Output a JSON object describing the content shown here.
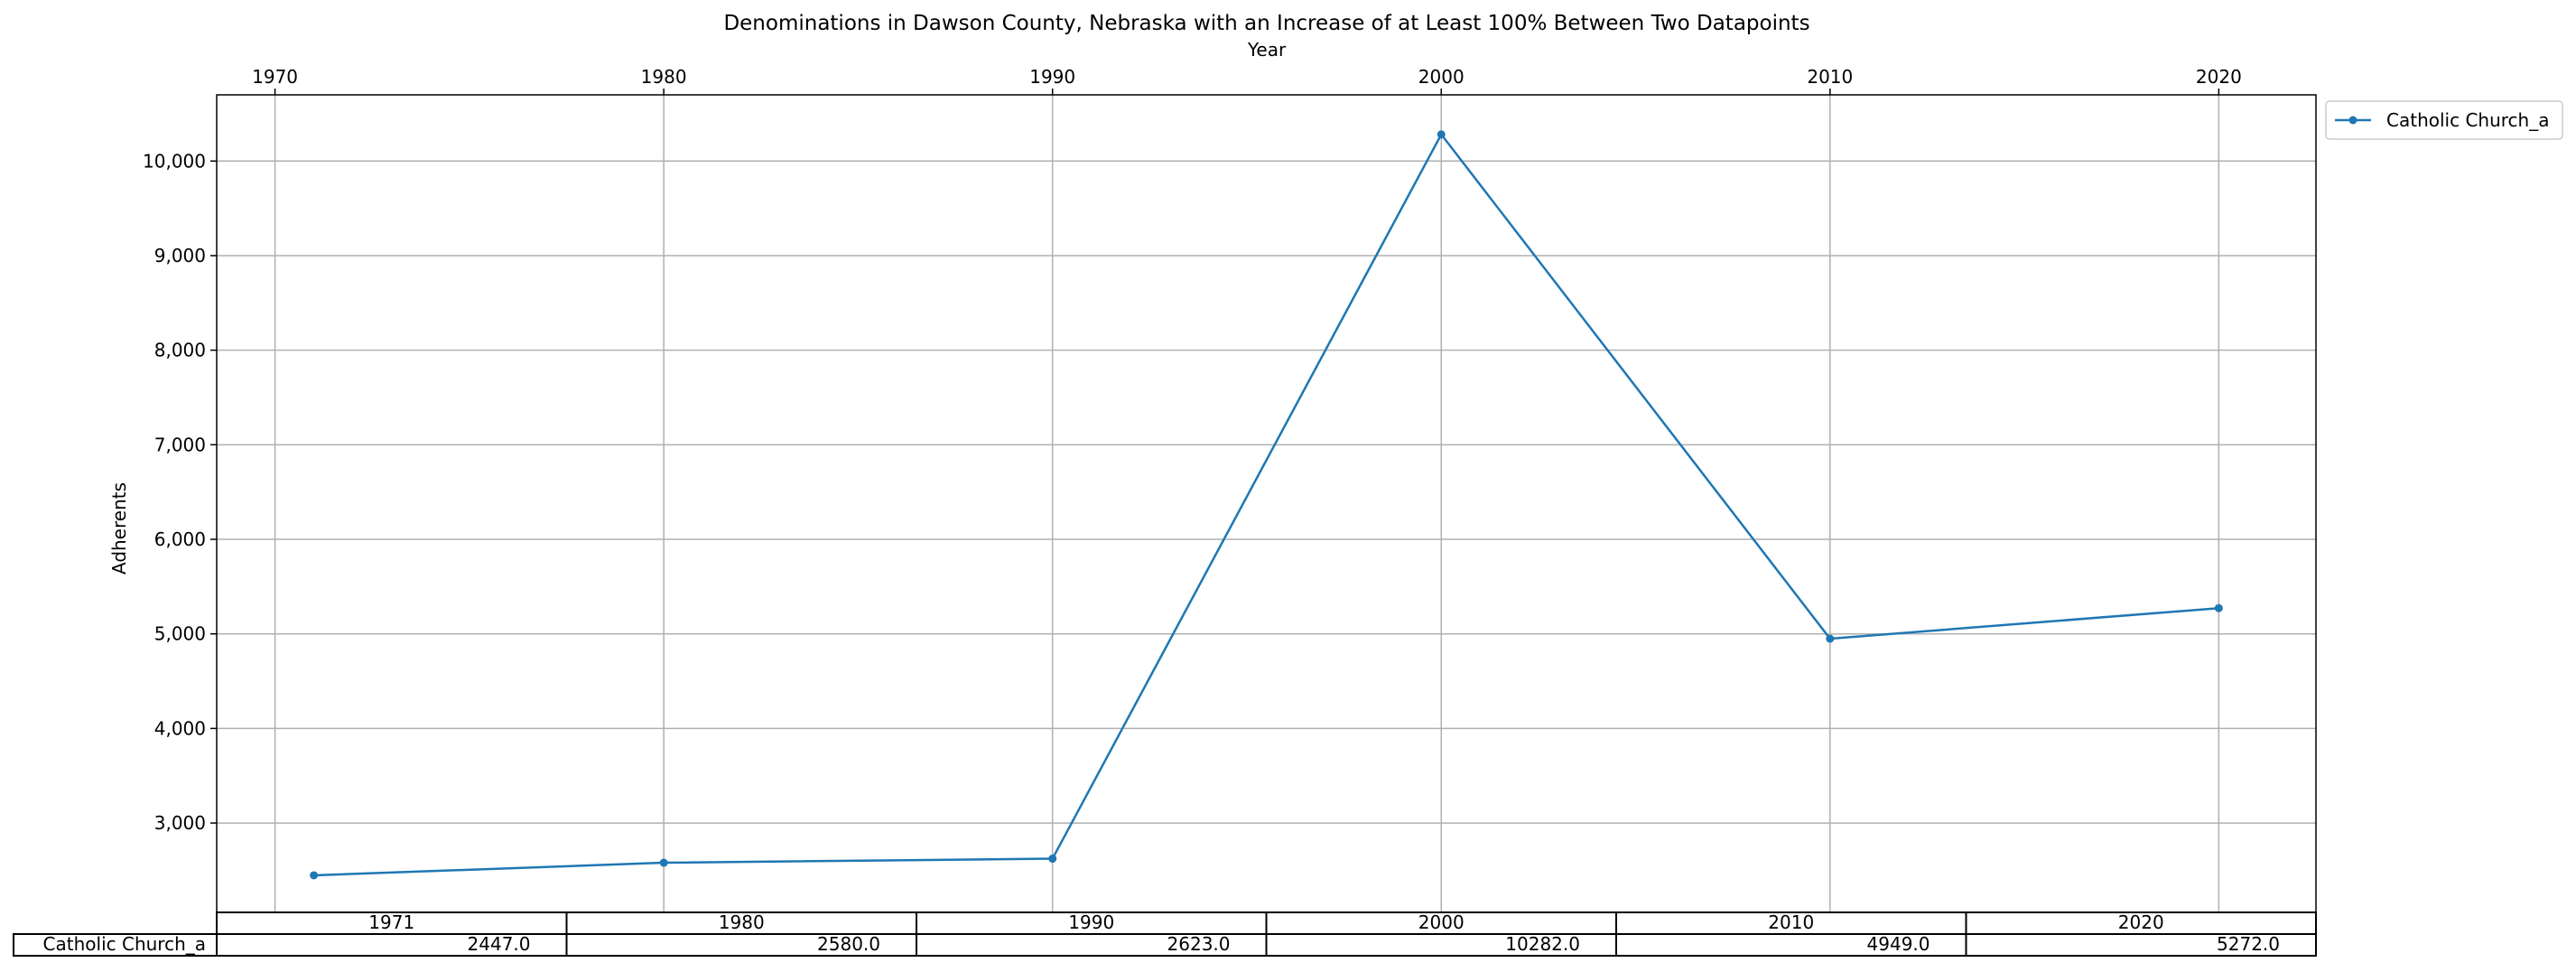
{
  "chart_data": {
    "type": "line",
    "title": "Denominations in Dawson County, Nebraska with an Increase of at Least 100% Between Two Datapoints",
    "xlabel": "Year",
    "ylabel": "Adherents",
    "x_ticks": [
      1970,
      1980,
      1990,
      2000,
      2010,
      2020
    ],
    "y_ticks": [
      3000,
      4000,
      5000,
      6000,
      7000,
      8000,
      9000,
      10000
    ],
    "y_tick_labels": [
      "3,000",
      "4,000",
      "5,000",
      "6,000",
      "7,000",
      "8,000",
      "9,000",
      "10,000"
    ],
    "xlim": [
      1968.5,
      2022.5
    ],
    "ylim": [
      2055,
      10700
    ],
    "grid": true,
    "legend_position": "outside-top-right",
    "x": [
      1971,
      1980,
      1990,
      2000,
      2010,
      2020
    ],
    "series": [
      {
        "name": "Catholic Church_a",
        "color": "#1f77b4",
        "values": [
          2447,
          2580,
          2623,
          10282,
          4949,
          5272
        ]
      }
    ],
    "table": {
      "col_labels": [
        "1971",
        "1980",
        "1990",
        "2000",
        "2010",
        "2020"
      ],
      "rows": [
        {
          "label": "Catholic Church_a",
          "cells": [
            "2447.0",
            "2580.0",
            "2623.0",
            "10282.0",
            "4949.0",
            "5272.0"
          ]
        }
      ]
    }
  }
}
